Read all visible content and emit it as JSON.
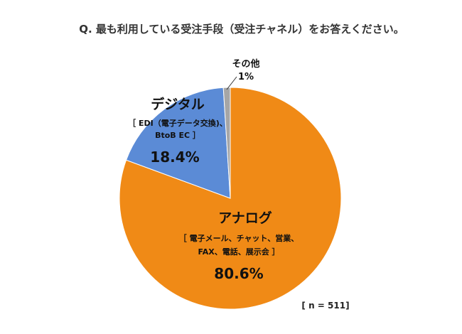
{
  "chart_data": {
    "type": "pie",
    "title": "Q. 最も利用している受注手段（受注チャネル）をお答えください。",
    "sample_note": "[ n = 511]",
    "colors": [
      "#F08A16",
      "#5B8BD6",
      "#A6A6A6"
    ],
    "slices": [
      {
        "name": "アナログ",
        "detail_lines": [
          "［ 電子メール、チャット、営業、",
          "FAX、電話、展示会 ］"
        ],
        "value": 80.6,
        "value_label": "80.6%"
      },
      {
        "name": "デジタル",
        "detail_lines": [
          "［ EDI（電子データ交換)、",
          "BtoB EC ］"
        ],
        "value": 18.4,
        "value_label": "18.4%"
      },
      {
        "name": "その他",
        "detail_lines": [],
        "value": 1,
        "value_label": "1%"
      }
    ]
  }
}
